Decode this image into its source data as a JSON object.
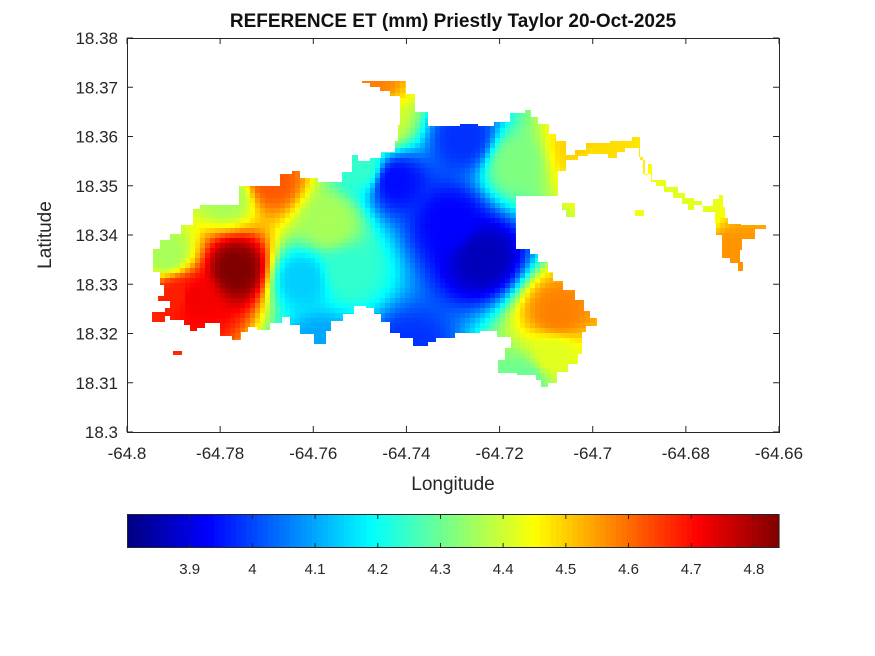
{
  "chart_data": {
    "type": "heatmap",
    "title": "REFERENCE ET (mm) Priestly Taylor 20-Oct-2025",
    "xlabel": "Longitude",
    "ylabel": "Latitude",
    "xlim": [
      -64.8,
      -64.66
    ],
    "ylim": [
      18.3,
      18.38
    ],
    "xticks": [
      -64.8,
      -64.78,
      -64.76,
      -64.74,
      -64.72,
      -64.7,
      -64.68,
      -64.66
    ],
    "xtick_labels": [
      "-64.8",
      "-64.78",
      "-64.76",
      "-64.74",
      "-64.72",
      "-64.7",
      "-64.68",
      "-64.66"
    ],
    "yticks": [
      18.3,
      18.31,
      18.32,
      18.33,
      18.34,
      18.35,
      18.36,
      18.37,
      18.38
    ],
    "ytick_labels": [
      "18.3",
      "18.31",
      "18.32",
      "18.33",
      "18.34",
      "18.35",
      "18.36",
      "18.37",
      "18.38"
    ],
    "grid": false,
    "colormap": "jet",
    "colorbar": {
      "orientation": "horizontal",
      "placement": "below",
      "range": [
        3.8,
        4.84
      ],
      "ticks": [
        3.9,
        4.0,
        4.1,
        4.2,
        4.3,
        4.4,
        4.5,
        4.6,
        4.7,
        4.8
      ],
      "tick_labels": [
        "3.9",
        "4",
        "4.1",
        "4.2",
        "4.3",
        "4.4",
        "4.5",
        "4.6",
        "4.7",
        "4.8"
      ]
    },
    "field_peaks": [
      {
        "lon": -64.7765,
        "lat": 18.333,
        "value": 4.84
      },
      {
        "lon": -64.7855,
        "lat": 18.327,
        "value": 4.72
      },
      {
        "lon": -64.769,
        "lat": 18.351,
        "value": 4.62
      },
      {
        "lon": -64.7475,
        "lat": 18.3705,
        "value": 4.58
      },
      {
        "lon": -64.6705,
        "lat": 18.336,
        "value": 4.56
      },
      {
        "lon": -64.7075,
        "lat": 18.324,
        "value": 4.58
      },
      {
        "lon": -64.701,
        "lat": 18.356,
        "value": 4.48
      },
      {
        "lon": -64.7235,
        "lat": 18.3355,
        "value": 3.86
      },
      {
        "lon": -64.7305,
        "lat": 18.3425,
        "value": 3.93
      },
      {
        "lon": -64.7425,
        "lat": 18.351,
        "value": 3.94
      },
      {
        "lon": -64.7275,
        "lat": 18.3595,
        "value": 3.98
      },
      {
        "lon": -64.7395,
        "lat": 18.3165,
        "value": 3.98
      },
      {
        "lon": -64.7585,
        "lat": 18.3175,
        "value": 4.1
      },
      {
        "lon": -64.7625,
        "lat": 18.331,
        "value": 4.14
      },
      {
        "lon": -64.7525,
        "lat": 18.3325,
        "value": 4.24
      },
      {
        "lon": -64.7145,
        "lat": 18.3105,
        "value": 4.3
      },
      {
        "lon": -64.7785,
        "lat": 18.348,
        "value": 4.36
      },
      {
        "lon": -64.7455,
        "lat": 18.3625,
        "value": 4.4
      },
      {
        "lon": -64.7165,
        "lat": 18.3545,
        "value": 4.32
      },
      {
        "lon": -64.7495,
        "lat": 18.3535,
        "value": 4.24
      },
      {
        "lon": -64.7025,
        "lat": 18.3575,
        "value": 4.5
      },
      {
        "lon": -64.6785,
        "lat": 18.345,
        "value": 4.42
      },
      {
        "lon": -64.7895,
        "lat": 18.3275,
        "value": 4.68
      },
      {
        "lon": -64.7915,
        "lat": 18.336,
        "value": 4.36
      },
      {
        "lon": -64.7565,
        "lat": 18.3425,
        "value": 4.36
      },
      {
        "lon": -64.7085,
        "lat": 18.3155,
        "value": 4.42
      }
    ]
  }
}
